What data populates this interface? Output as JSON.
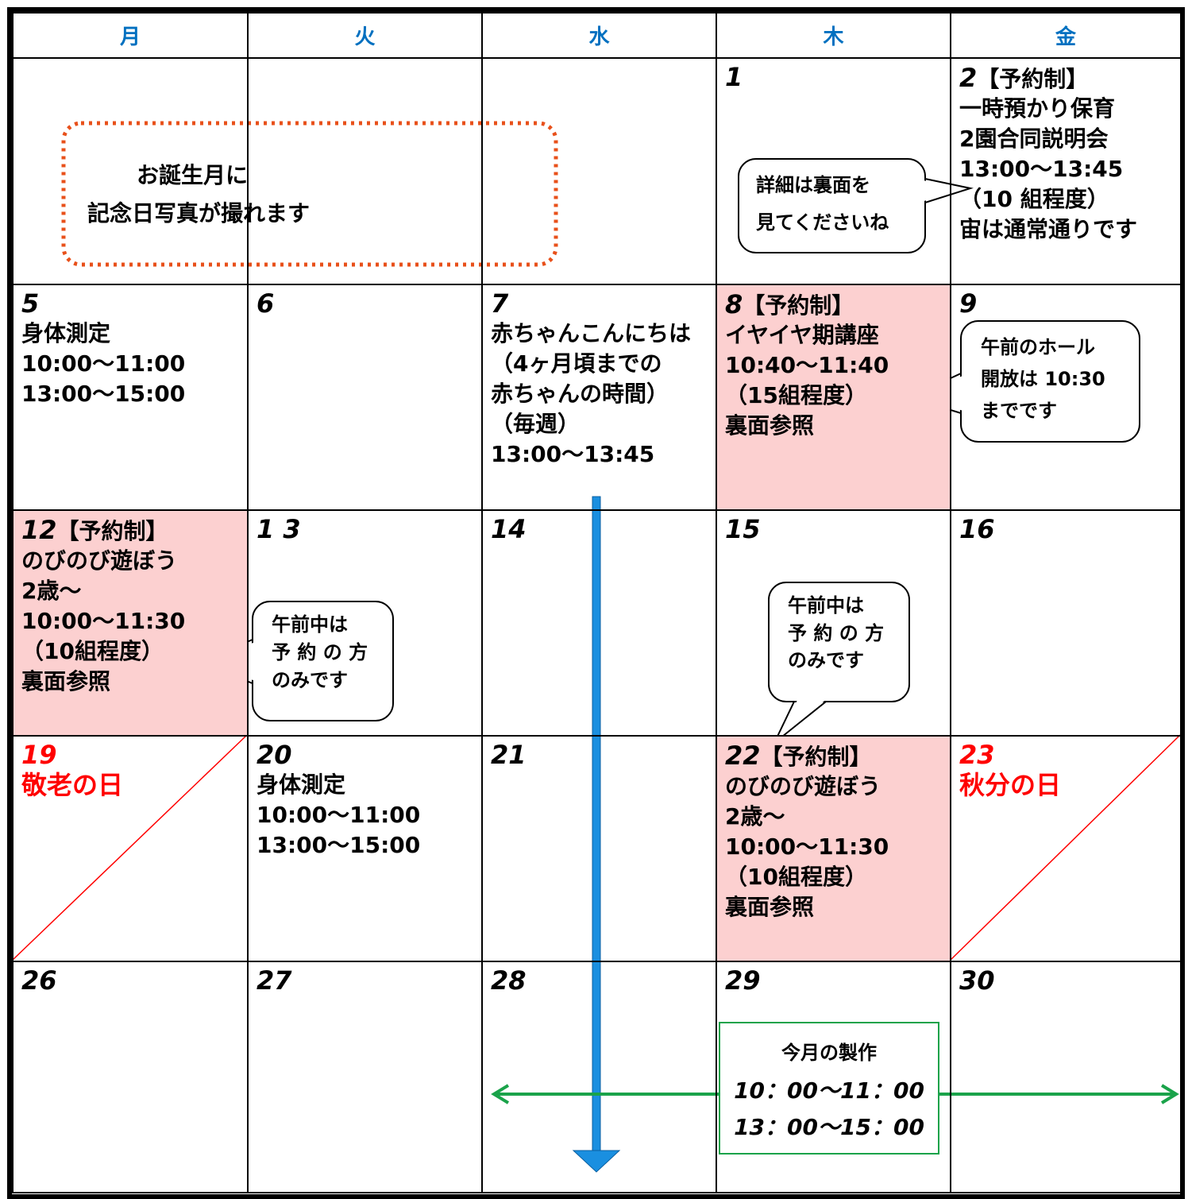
{
  "header": {
    "days": [
      "月",
      "火",
      "水",
      "木",
      "金"
    ],
    "color": "#0070c0"
  },
  "weeks": [
    [
      null,
      null,
      null,
      {
        "date": "1"
      },
      {
        "date": "2",
        "tag": "【予約制】",
        "lines": [
          "一時預かり保育",
          "2園合同説明会",
          "13:00～13:45",
          "（10 組程度）",
          "宙は通常通りです"
        ]
      }
    ],
    [
      {
        "date": "5",
        "lines": [
          "身体測定",
          "10:00～11:00",
          "13:00～15:00"
        ]
      },
      {
        "date": "6"
      },
      {
        "date": "7",
        "lines": [
          "赤ちゃんこんにちは",
          "（4ヶ月頃までの",
          "赤ちゃんの時間）",
          "（毎週）",
          "13:00～13:45"
        ]
      },
      {
        "date": "8",
        "tag": "【予約制】",
        "background": "#fcd0d0",
        "lines": [
          "イヤイヤ期講座",
          "10:40～11:40",
          "（15組程度）",
          "裏面参照"
        ]
      },
      {
        "date": "9"
      }
    ],
    [
      {
        "date": "12",
        "tag": "【予約制】",
        "background": "#fcd0d0",
        "lines": [
          "のびのび遊ぼう",
          "2歳～",
          "10:00～11:30",
          "（10組程度）",
          "裏面参照"
        ]
      },
      {
        "date": "1 3"
      },
      {
        "date": "14"
      },
      {
        "date": "15"
      },
      {
        "date": "16"
      }
    ],
    [
      {
        "date": "19",
        "color": "#ff0000",
        "diagonal": true,
        "lines": [
          "敬老の日"
        ]
      },
      {
        "date": "20",
        "lines": [
          "身体測定",
          "10:00～11:00",
          "13:00～15:00"
        ]
      },
      {
        "date": "21"
      },
      {
        "date": "22",
        "tag": "【予約制】",
        "background": "#fcd0d0",
        "lines": [
          "のびのび遊ぼう",
          "2歳～",
          "10:00～11:30",
          "（10組程度）",
          "裏面参照"
        ]
      },
      {
        "date": "23",
        "color": "#ff0000",
        "diagonal": true,
        "lines": [
          "秋分の日"
        ]
      }
    ],
    [
      {
        "date": "26"
      },
      {
        "date": "27"
      },
      {
        "date": "28"
      },
      {
        "date": "29"
      },
      {
        "date": "30"
      }
    ]
  ],
  "callouts": [
    {
      "lines": [
        "お誕生月に",
        "記念日写真が撮れます"
      ],
      "border": "#e8501a"
    },
    {
      "lines": [
        "詳細は裏面を",
        "見てくださいね"
      ]
    },
    {
      "lines": [
        "午前のホール",
        "開放は 10:30",
        "までです"
      ]
    },
    {
      "lines": [
        "午前中は",
        "予 約 の 方",
        "のみです"
      ]
    },
    {
      "lines": [
        "午前中は",
        "予 約 の 方",
        "のみです"
      ]
    },
    {
      "lines": [
        "今月の製作",
        "10：00～11：00",
        "13：00～15：00"
      ],
      "border": "#1aa34a"
    }
  ]
}
